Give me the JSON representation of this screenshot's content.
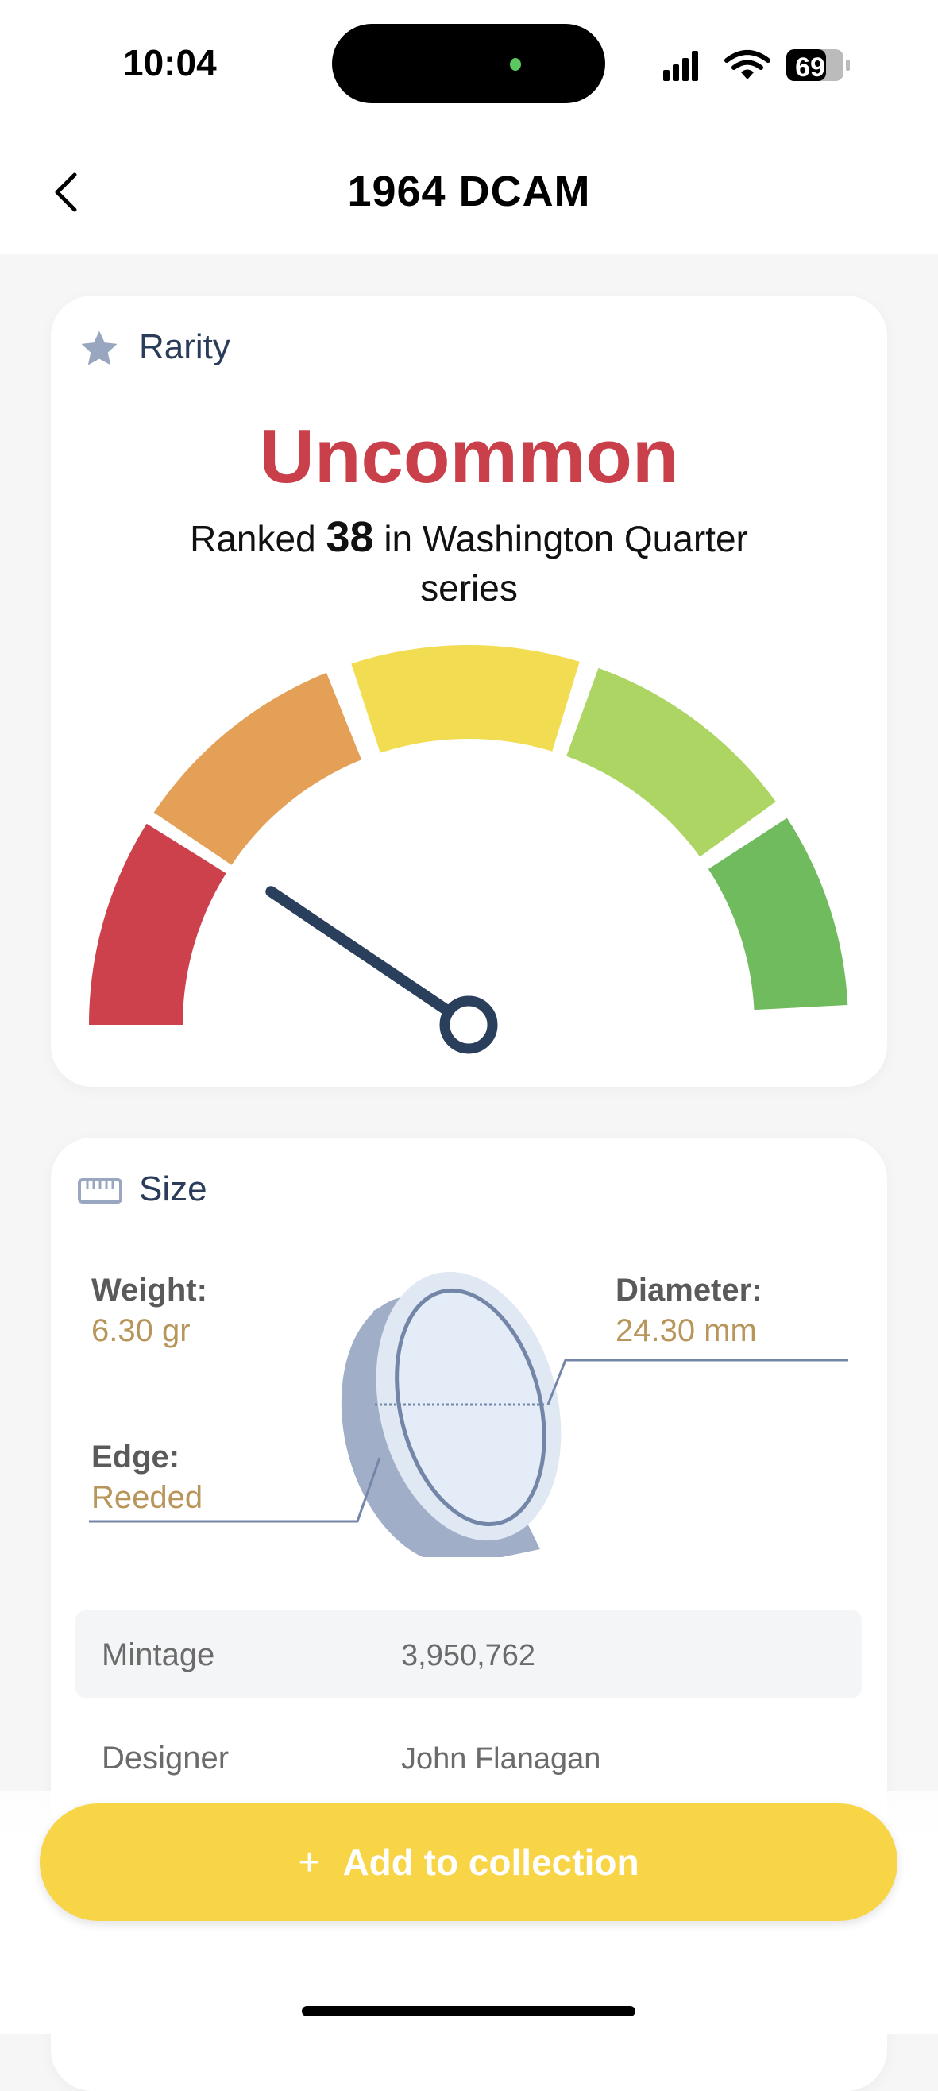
{
  "status": {
    "time": "10:04",
    "battery": "69"
  },
  "nav": {
    "title": "1964 DCAM"
  },
  "rarity": {
    "header": "Rarity",
    "level": "Uncommon",
    "ranked_prefix": "Ranked",
    "rank": "38",
    "ranked_suffix": "in Washington Quarter",
    "ranked_line2": "series",
    "gauge_colors": [
      "#cc414b",
      "#e4a057",
      "#f2dc52",
      "#acd563",
      "#6fbb5e"
    ],
    "needle_color": "#2a3f5c"
  },
  "size": {
    "header": "Size",
    "weight_label": "Weight:",
    "weight_value": "6.30 gr",
    "diameter_label": "Diameter:",
    "diameter_value": "24.30 mm",
    "edge_label": "Edge:",
    "edge_value": "Reeded"
  },
  "details": [
    {
      "label": "Mintage",
      "value": "3,950,762"
    },
    {
      "label": "Designer",
      "value": "John Flanagan"
    }
  ],
  "action": {
    "icon": "plus-icon",
    "label": "Add to collection",
    "color": "#f8d447"
  }
}
